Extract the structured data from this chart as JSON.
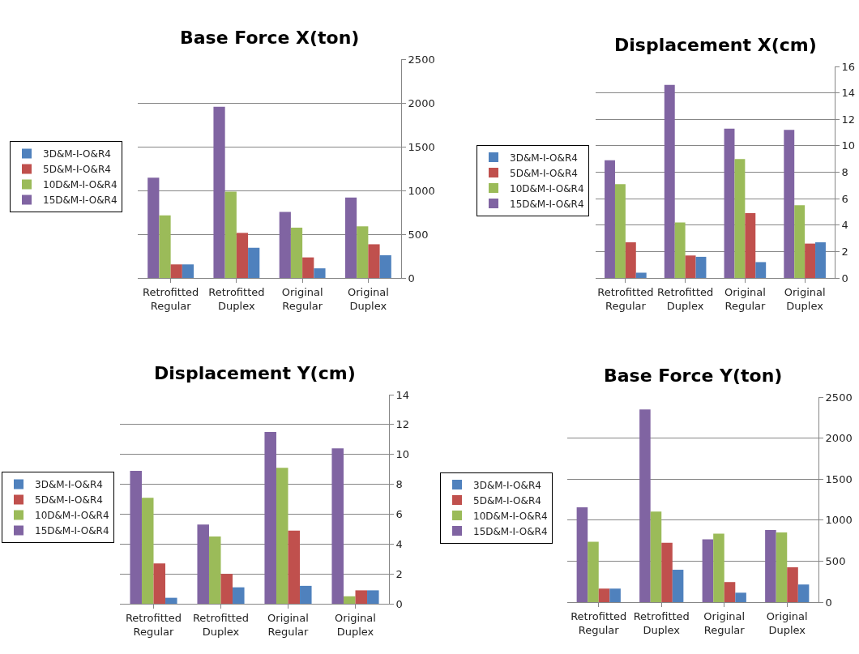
{
  "chart_data": [
    {
      "type": "bar",
      "title": "Base Force X(ton)",
      "categories": [
        "Retrofitted Regular",
        "Retrofitted Duplex",
        "Original Regular",
        "Original Duplex"
      ],
      "ylim": [
        0,
        2500
      ],
      "yticks": [
        0,
        500,
        1000,
        1500,
        2000,
        2500
      ],
      "grid": "y",
      "legend": "left",
      "series": [
        {
          "name": "15D&M-I-O&R4",
          "color": "#8064a2",
          "values": [
            1145,
            1955,
            755,
            920
          ]
        },
        {
          "name": "10D&M-I-O&R4",
          "color": "#9bbb59",
          "values": [
            715,
            985,
            575,
            590
          ]
        },
        {
          "name": "5D&M-I-O&R4",
          "color": "#c0504d",
          "values": [
            155,
            515,
            235,
            385
          ]
        },
        {
          "name": "3D&M-I-O&R4",
          "color": "#4f81bd",
          "values": [
            155,
            345,
            110,
            260
          ]
        }
      ]
    },
    {
      "type": "bar",
      "title": "Displacement X(cm)",
      "categories": [
        "Retrofitted Regular",
        "Retrofitted Duplex",
        "Original Regular",
        "Original Duplex"
      ],
      "ylim": [
        0,
        16
      ],
      "yticks": [
        0,
        2,
        4,
        6,
        8,
        10,
        12,
        14,
        16
      ],
      "grid": "y",
      "legend": "left",
      "series": [
        {
          "name": "15D&M-I-O&R4",
          "color": "#8064a2",
          "values": [
            8.9,
            14.6,
            11.3,
            11.2
          ]
        },
        {
          "name": "10D&M-I-O&R4",
          "color": "#9bbb59",
          "values": [
            7.1,
            4.2,
            9.0,
            5.5
          ]
        },
        {
          "name": "5D&M-I-O&R4",
          "color": "#c0504d",
          "values": [
            2.7,
            1.7,
            4.9,
            2.6
          ]
        },
        {
          "name": "3D&M-I-O&R4",
          "color": "#4f81bd",
          "values": [
            0.4,
            1.6,
            1.2,
            2.7
          ]
        }
      ]
    },
    {
      "type": "bar",
      "title": "Displacement Y(cm)",
      "categories": [
        "Retrofitted Regular",
        "Retrofitted Duplex",
        "Original Regular",
        "Original Duplex"
      ],
      "ylim": [
        0,
        14
      ],
      "yticks": [
        0,
        2,
        4,
        6,
        8,
        10,
        12,
        14
      ],
      "grid": "y",
      "legend": "left",
      "series": [
        {
          "name": "15D&M-I-O&R4",
          "color": "#8064a2",
          "values": [
            8.9,
            5.3,
            11.5,
            10.4
          ]
        },
        {
          "name": "10D&M-I-O&R4",
          "color": "#9bbb59",
          "values": [
            7.1,
            4.5,
            9.1,
            0.5
          ]
        },
        {
          "name": "5D&M-I-O&R4",
          "color": "#c0504d",
          "values": [
            2.7,
            2.0,
            4.9,
            0.9
          ]
        },
        {
          "name": "3D&M-I-O&R4",
          "color": "#4f81bd",
          "values": [
            0.4,
            1.1,
            1.2,
            0.9
          ]
        }
      ]
    },
    {
      "type": "bar",
      "title": "Base Force Y(ton)",
      "categories": [
        "Retrofitted Regular",
        "Retrofitted Duplex",
        "Original Regular",
        "Original Duplex"
      ],
      "ylim": [
        0,
        2500
      ],
      "yticks": [
        0,
        500,
        1000,
        1500,
        2000,
        2500
      ],
      "grid": "y",
      "legend": "left",
      "series": [
        {
          "name": "15D&M-I-O&R4",
          "color": "#8064a2",
          "values": [
            1155,
            2350,
            765,
            880
          ]
        },
        {
          "name": "10D&M-I-O&R4",
          "color": "#9bbb59",
          "values": [
            735,
            1105,
            835,
            850
          ]
        },
        {
          "name": "5D&M-I-O&R4",
          "color": "#c0504d",
          "values": [
            165,
            725,
            245,
            425
          ]
        },
        {
          "name": "3D&M-I-O&R4",
          "color": "#4f81bd",
          "values": [
            165,
            395,
            115,
            215
          ]
        }
      ]
    }
  ]
}
